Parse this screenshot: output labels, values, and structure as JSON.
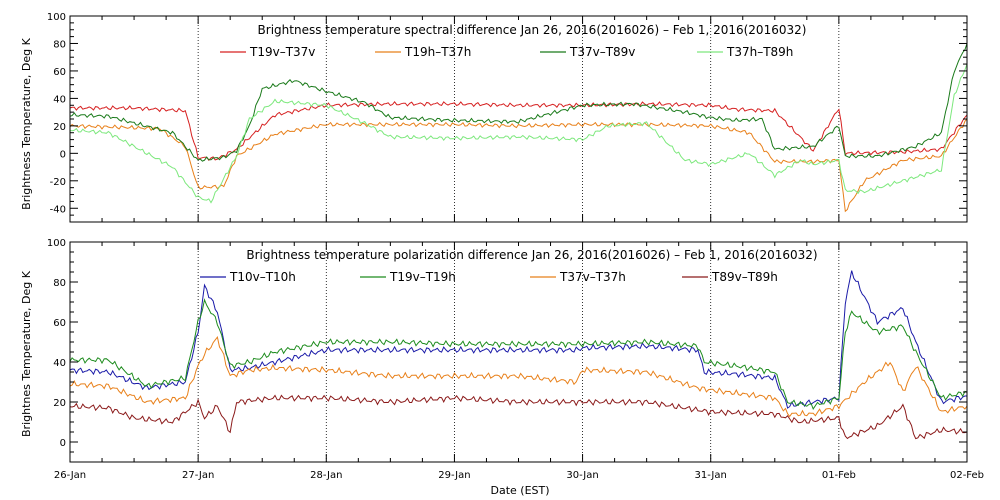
{
  "figure": {
    "xlabel": "Date (EST)",
    "x_ticks": [
      "26-Jan",
      "27-Jan",
      "28-Jan",
      "29-Jan",
      "30-Jan",
      "31-Jan",
      "01-Feb",
      "02-Feb"
    ]
  },
  "chart_data": [
    {
      "type": "line",
      "title": "Brightness temperature spectral difference    Jan 26, 2016(2016026) – Feb  1, 2016(2016032)",
      "ylabel": "Brightness Temperature, Deg K",
      "xlim": [
        0,
        7
      ],
      "ylim": [
        -50,
        100
      ],
      "yticks": [
        -40,
        -20,
        0,
        20,
        40,
        60,
        80,
        100
      ],
      "grid": "vertical dotted lines at each day",
      "legend": "top",
      "series": [
        {
          "name": "T19v–T37v",
          "color": "#d62020",
          "x": [
            0,
            0.5,
            0.9,
            1.0,
            1.15,
            1.3,
            1.6,
            2.0,
            2.5,
            3.0,
            3.5,
            4.0,
            4.5,
            5.0,
            5.2,
            5.5,
            5.8,
            6.0,
            6.05,
            6.5,
            6.8,
            7.0
          ],
          "y": [
            33,
            33,
            31,
            -3,
            -4,
            3,
            28,
            35,
            36,
            36,
            35,
            35,
            36,
            35,
            32,
            31,
            2,
            33,
            0,
            1,
            3,
            28
          ]
        },
        {
          "name": "T19h–T37h",
          "color": "#e8801a",
          "x": [
            0,
            0.4,
            0.7,
            0.9,
            1.0,
            1.2,
            1.3,
            1.6,
            2.0,
            2.5,
            3.0,
            3.5,
            4.0,
            4.5,
            5.0,
            5.3,
            5.5,
            5.8,
            6.0,
            6.05,
            6.2,
            6.5,
            6.8,
            7.0
          ],
          "y": [
            20,
            19,
            18,
            5,
            -25,
            -24,
            -2,
            14,
            21,
            21,
            21,
            20,
            21,
            21,
            20,
            15,
            -6,
            -6,
            -5,
            -42,
            -20,
            -5,
            -2,
            25
          ]
        },
        {
          "name": "T37v–T89v",
          "color": "#1a7a1a",
          "x": [
            0,
            0.3,
            0.5,
            0.8,
            1.0,
            1.2,
            1.3,
            1.4,
            1.5,
            1.75,
            2.0,
            2.3,
            2.5,
            3.0,
            3.5,
            4.0,
            4.4,
            4.8,
            5.0,
            5.2,
            5.4,
            5.5,
            5.8,
            6.0,
            6.05,
            6.3,
            6.6,
            6.8,
            6.9,
            7.0
          ],
          "y": [
            28,
            27,
            22,
            15,
            -5,
            -3,
            2,
            20,
            47,
            53,
            45,
            37,
            26,
            24,
            23,
            35,
            36,
            30,
            26,
            24,
            25,
            3,
            5,
            20,
            -2,
            -2,
            5,
            15,
            60,
            80
          ]
        },
        {
          "name": "T37h–T89h",
          "color": "#7de87d",
          "x": [
            0,
            0.3,
            0.5,
            0.8,
            1.0,
            1.1,
            1.3,
            1.4,
            1.6,
            2.0,
            2.3,
            2.5,
            3.0,
            3.5,
            4.0,
            4.2,
            4.5,
            4.8,
            5.0,
            5.3,
            5.5,
            5.7,
            5.8,
            6.0,
            6.05,
            6.2,
            6.5,
            6.8,
            6.9,
            7.0
          ],
          "y": [
            17,
            15,
            5,
            -10,
            -32,
            -35,
            -2,
            25,
            38,
            35,
            22,
            12,
            11,
            12,
            10,
            20,
            22,
            -5,
            -8,
            0,
            -16,
            -5,
            -8,
            -5,
            -27,
            -28,
            -20,
            -12,
            42,
            65
          ]
        }
      ]
    },
    {
      "type": "line",
      "title": "Brightness temperature polarization difference    Jan 26, 2016(2016026) – Feb  1, 2016(2016032)",
      "ylabel": "Brightnes Temperature, Deg K",
      "xlim": [
        0,
        7
      ],
      "ylim": [
        -10,
        100
      ],
      "yticks": [
        0,
        20,
        40,
        60,
        80,
        100
      ],
      "grid": "vertical dotted lines at each day",
      "legend": "top",
      "series": [
        {
          "name": "T10v–T10h",
          "color": "#1a1aa8",
          "x": [
            0,
            0.3,
            0.6,
            0.9,
            1.0,
            1.05,
            1.15,
            1.25,
            1.4,
            1.6,
            2.0,
            2.5,
            3.0,
            3.5,
            3.95,
            4.0,
            4.5,
            4.9,
            4.95,
            5.2,
            5.5,
            5.6,
            5.8,
            6.0,
            6.05,
            6.1,
            6.3,
            6.5,
            6.6,
            6.8,
            7.0
          ],
          "y": [
            36,
            35,
            27,
            30,
            55,
            78,
            65,
            36,
            37,
            40,
            46,
            46,
            46,
            46,
            46,
            47,
            48,
            46,
            35,
            34,
            32,
            18,
            20,
            22,
            70,
            85,
            60,
            67,
            50,
            20,
            23
          ]
        },
        {
          "name": "T19v–T19h",
          "color": "#1e8c1e",
          "x": [
            0,
            0.3,
            0.6,
            0.9,
            1.0,
            1.05,
            1.15,
            1.25,
            1.4,
            1.6,
            2.0,
            2.5,
            3.0,
            3.5,
            4.0,
            4.5,
            4.9,
            4.95,
            5.2,
            5.5,
            5.6,
            5.8,
            6.0,
            6.05,
            6.1,
            6.3,
            6.5,
            6.6,
            6.8,
            7.0
          ],
          "y": [
            41,
            41,
            28,
            32,
            60,
            70,
            60,
            38,
            40,
            45,
            50,
            50,
            49,
            49,
            49,
            50,
            48,
            40,
            38,
            35,
            20,
            18,
            22,
            55,
            65,
            55,
            58,
            45,
            22,
            25
          ]
        },
        {
          "name": "T37v–T37h",
          "color": "#e8801a",
          "x": [
            0,
            0.3,
            0.6,
            0.9,
            1.0,
            1.05,
            1.15,
            1.25,
            1.4,
            1.6,
            2.0,
            2.5,
            3.0,
            3.5,
            3.95,
            4.0,
            4.5,
            4.9,
            5.0,
            5.5,
            5.6,
            5.8,
            6.0,
            6.2,
            6.4,
            6.5,
            6.6,
            6.8,
            7.0
          ],
          "y": [
            29,
            28,
            20,
            22,
            38,
            44,
            52,
            33,
            36,
            37,
            36,
            33,
            33,
            33,
            30,
            36,
            35,
            27,
            26,
            22,
            14,
            14,
            18,
            30,
            40,
            25,
            38,
            15,
            18
          ]
        },
        {
          "name": "T89v–T89h",
          "color": "#8b1a1a",
          "x": [
            0,
            0.3,
            0.5,
            0.8,
            1.0,
            1.05,
            1.15,
            1.25,
            1.3,
            1.6,
            2.0,
            2.5,
            3.0,
            3.5,
            4.0,
            4.5,
            5.0,
            5.5,
            5.7,
            6.0,
            6.05,
            6.3,
            6.5,
            6.6,
            6.8,
            7.0
          ],
          "y": [
            18,
            17,
            12,
            10,
            20,
            12,
            18,
            5,
            20,
            22,
            22,
            20,
            22,
            20,
            20,
            20,
            15,
            14,
            10,
            12,
            2,
            8,
            18,
            2,
            6,
            5
          ]
        }
      ]
    }
  ]
}
